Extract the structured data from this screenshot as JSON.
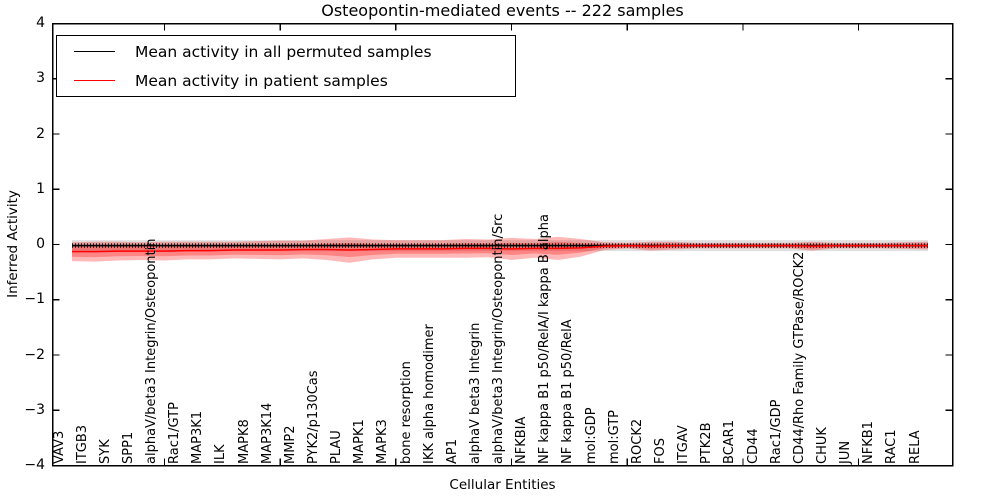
{
  "title": "Osteopontin-mediated events -- 222 samples",
  "legend": {
    "items": [
      {
        "label": "Mean activity in all permuted samples",
        "color": "#000000"
      },
      {
        "label": "Mean activity in patient samples",
        "color": "#ff0000"
      }
    ]
  },
  "axes": {
    "xlabel": "Cellular Entities",
    "ylabel": "Inferred Activity",
    "y_tick_labels": [
      "4",
      "3",
      "2",
      "1",
      "0",
      "−1",
      "−2",
      "−3",
      "−4"
    ],
    "y_tick_values": [
      4,
      3,
      2,
      1,
      0,
      -1,
      -2,
      -3,
      -4
    ]
  },
  "chart_data": {
    "type": "line",
    "title": "Osteopontin-mediated events -- 222 samples",
    "xlabel": "Cellular Entities",
    "ylabel": "Inferred Activity",
    "ylim": [
      -4,
      4
    ],
    "grid": false,
    "legend_position": "upper left",
    "x_major_ticks_every": 5,
    "categories": [
      "VAV3",
      "ITGB3",
      "SYK",
      "SPP1",
      "alphaV/beta3 Integrin/Osteopontin",
      "Rac1/GTP",
      "MAP3K1",
      "ILK",
      "MAPK8",
      "MAP3K14",
      "MMP2",
      "PYK2/p130Cas",
      "PLAU",
      "MAPK1",
      "MAPK3",
      "bone resorption",
      "IKK alpha homodimer",
      "AP1",
      "alphaV beta3 Integrin",
      "alphaV/beta3 Integrin/Osteopontin/Src",
      "NFKBIA",
      "NF kappa B1 p50/RelA/I kappa B alpha",
      "NF kappa B1 p50/RelA",
      "mol:GDP",
      "mol:GTP",
      "ROCK2",
      "FOS",
      "ITGAV",
      "PTK2B",
      "BCAR1",
      "CD44",
      "Rac1/GDP",
      "CD44/Rho Family GTPase/ROCK2",
      "CHUK",
      "JUN",
      "NFKB1",
      "RAC1",
      "RELA"
    ],
    "series": [
      {
        "name": "Mean activity in all permuted samples",
        "color": "#000000",
        "band_color": "rgba(0,0,0,0.12)",
        "values": [
          -0.02,
          -0.02,
          -0.02,
          -0.02,
          -0.02,
          -0.02,
          -0.02,
          -0.02,
          -0.02,
          -0.02,
          -0.02,
          -0.02,
          -0.02,
          -0.02,
          -0.02,
          -0.02,
          -0.02,
          -0.02,
          -0.02,
          -0.02,
          -0.02,
          -0.02,
          -0.02,
          -0.02,
          -0.02,
          -0.02,
          -0.02,
          -0.02,
          -0.02,
          -0.02,
          -0.02,
          -0.02,
          -0.02,
          -0.02,
          -0.02,
          -0.02,
          -0.02,
          -0.02
        ],
        "band_halfwidth": [
          0.1,
          0.1,
          0.1,
          0.1,
          0.1,
          0.1,
          0.1,
          0.1,
          0.1,
          0.1,
          0.1,
          0.1,
          0.1,
          0.1,
          0.1,
          0.1,
          0.1,
          0.1,
          0.1,
          0.1,
          0.1,
          0.1,
          0.1,
          0.1,
          0.1,
          0.1,
          0.1,
          0.1,
          0.1,
          0.1,
          0.1,
          0.1,
          0.1,
          0.1,
          0.1,
          0.1,
          0.1,
          0.1
        ]
      },
      {
        "name": "Mean activity in patient samples",
        "color": "#ff0000",
        "band_color": "rgba(255,0,0,0.28)",
        "values": [
          -0.13,
          -0.13,
          -0.12,
          -0.12,
          -0.12,
          -0.11,
          -0.11,
          -0.1,
          -0.1,
          -0.1,
          -0.09,
          -0.09,
          -0.1,
          -0.09,
          -0.08,
          -0.08,
          -0.08,
          -0.07,
          -0.07,
          -0.08,
          -0.07,
          -0.07,
          -0.06,
          -0.03,
          -0.02,
          -0.03,
          -0.02,
          -0.02,
          -0.02,
          -0.02,
          -0.02,
          -0.02,
          -0.03,
          -0.02,
          -0.02,
          -0.02,
          -0.02,
          -0.02
        ],
        "band_halfwidth": [
          0.17,
          0.18,
          0.17,
          0.16,
          0.17,
          0.16,
          0.16,
          0.15,
          0.16,
          0.17,
          0.16,
          0.19,
          0.23,
          0.18,
          0.16,
          0.16,
          0.16,
          0.17,
          0.16,
          0.2,
          0.17,
          0.21,
          0.16,
          0.07,
          0.05,
          0.08,
          0.07,
          0.05,
          0.05,
          0.05,
          0.05,
          0.05,
          0.08,
          0.05,
          0.05,
          0.05,
          0.06,
          0.07
        ],
        "inner_band_scale": 0.55
      }
    ]
  }
}
